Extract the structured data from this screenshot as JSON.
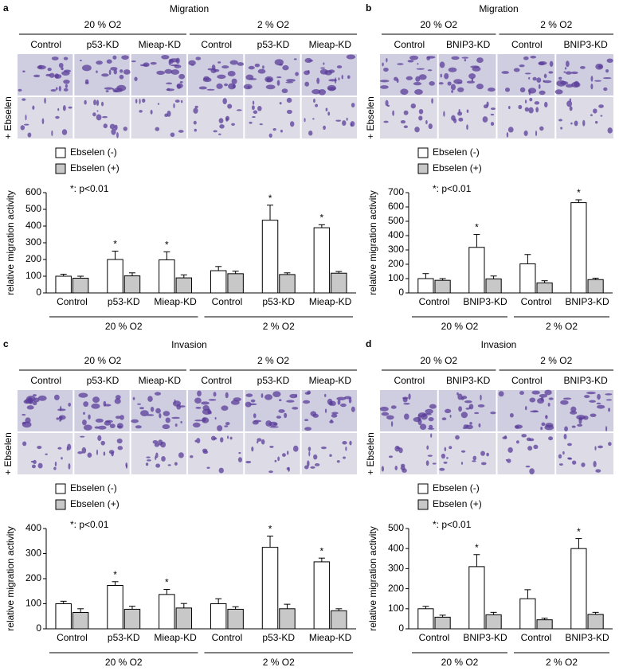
{
  "chart_data": [
    {
      "type": "bar",
      "panel": "a",
      "title": "Migration",
      "conditions": [
        "20 % O2",
        "2 % O2"
      ],
      "row_label": "+ Ebselen",
      "categories": [
        "Control",
        "p53-KD",
        "Mieap-KD",
        "Control",
        "p53-KD",
        "Mieap-KD"
      ],
      "note": "*: p<0.01",
      "ylabel": "relative migration activity",
      "ylim": [
        0,
        600
      ],
      "yticks": [
        0,
        100,
        200,
        300,
        400,
        500,
        600
      ],
      "series": [
        {
          "name": "Ebselen (-)",
          "color": "#ffffff",
          "values": [
            100,
            200,
            198,
            133,
            435,
            390
          ],
          "errors": [
            12,
            50,
            48,
            25,
            90,
            18
          ]
        },
        {
          "name": "Ebselen (+)",
          "color": "#c8c8c8",
          "values": [
            88,
            102,
            90,
            115,
            110,
            118
          ],
          "errors": [
            12,
            18,
            18,
            15,
            10,
            10
          ]
        }
      ],
      "markers": [
        null,
        "*",
        "*",
        null,
        "*",
        "*"
      ]
    },
    {
      "type": "bar",
      "panel": "b",
      "title": "Migration",
      "conditions": [
        "20 % O2",
        "2 % O2"
      ],
      "row_label": "+ Ebselen",
      "categories": [
        "Control",
        "BNIP3-KD",
        "Control",
        "BNIP3-KD"
      ],
      "note": "*: p<0.01",
      "ylabel": "relative migration activity",
      "ylim": [
        0,
        700
      ],
      "yticks": [
        0,
        100,
        200,
        300,
        400,
        500,
        600,
        700
      ],
      "series": [
        {
          "name": "Ebselen (-)",
          "color": "#ffffff",
          "values": [
            100,
            318,
            203,
            630
          ],
          "errors": [
            35,
            90,
            65,
            20
          ]
        },
        {
          "name": "Ebselen (+)",
          "color": "#c8c8c8",
          "values": [
            88,
            98,
            70,
            93
          ],
          "errors": [
            12,
            20,
            15,
            10
          ]
        }
      ],
      "markers": [
        null,
        "*",
        null,
        "*"
      ]
    },
    {
      "type": "bar",
      "panel": "c",
      "title": "Invasion",
      "conditions": [
        "20 % O2",
        "2 % O2"
      ],
      "row_label": "+ Ebselen",
      "categories": [
        "Control",
        "p53-KD",
        "Mieap-KD",
        "Control",
        "p53-KD",
        "Mieap-KD"
      ],
      "note": "*: p<0.01",
      "ylabel": "relative migration activity",
      "ylim": [
        0,
        400
      ],
      "yticks": [
        0,
        100,
        200,
        300,
        400
      ],
      "series": [
        {
          "name": "Ebselen (-)",
          "color": "#ffffff",
          "values": [
            100,
            173,
            137,
            100,
            325,
            267
          ],
          "errors": [
            10,
            15,
            20,
            20,
            45,
            15
          ]
        },
        {
          "name": "Ebselen (+)",
          "color": "#c8c8c8",
          "values": [
            65,
            78,
            83,
            78,
            80,
            72
          ],
          "errors": [
            15,
            12,
            18,
            10,
            18,
            8
          ]
        }
      ],
      "markers": [
        null,
        "*",
        "*",
        null,
        "*",
        "*"
      ]
    },
    {
      "type": "bar",
      "panel": "d",
      "title": "Invasion",
      "conditions": [
        "20 % O2",
        "2 % O2"
      ],
      "row_label": "+ Ebselen",
      "categories": [
        "Control",
        "BNIP3-KD",
        "Control",
        "BNIP3-KD"
      ],
      "note": "*: p<0.01",
      "ylabel": "relative migration activity",
      "ylim": [
        0,
        500
      ],
      "yticks": [
        0,
        100,
        200,
        300,
        400,
        500
      ],
      "series": [
        {
          "name": "Ebselen (-)",
          "color": "#ffffff",
          "values": [
            100,
            310,
            150,
            400
          ],
          "errors": [
            12,
            60,
            45,
            50
          ]
        },
        {
          "name": "Ebselen (+)",
          "color": "#c8c8c8",
          "values": [
            58,
            70,
            45,
            72
          ],
          "errors": [
            10,
            12,
            8,
            10
          ]
        }
      ],
      "markers": [
        null,
        "*",
        null,
        "*"
      ]
    }
  ]
}
